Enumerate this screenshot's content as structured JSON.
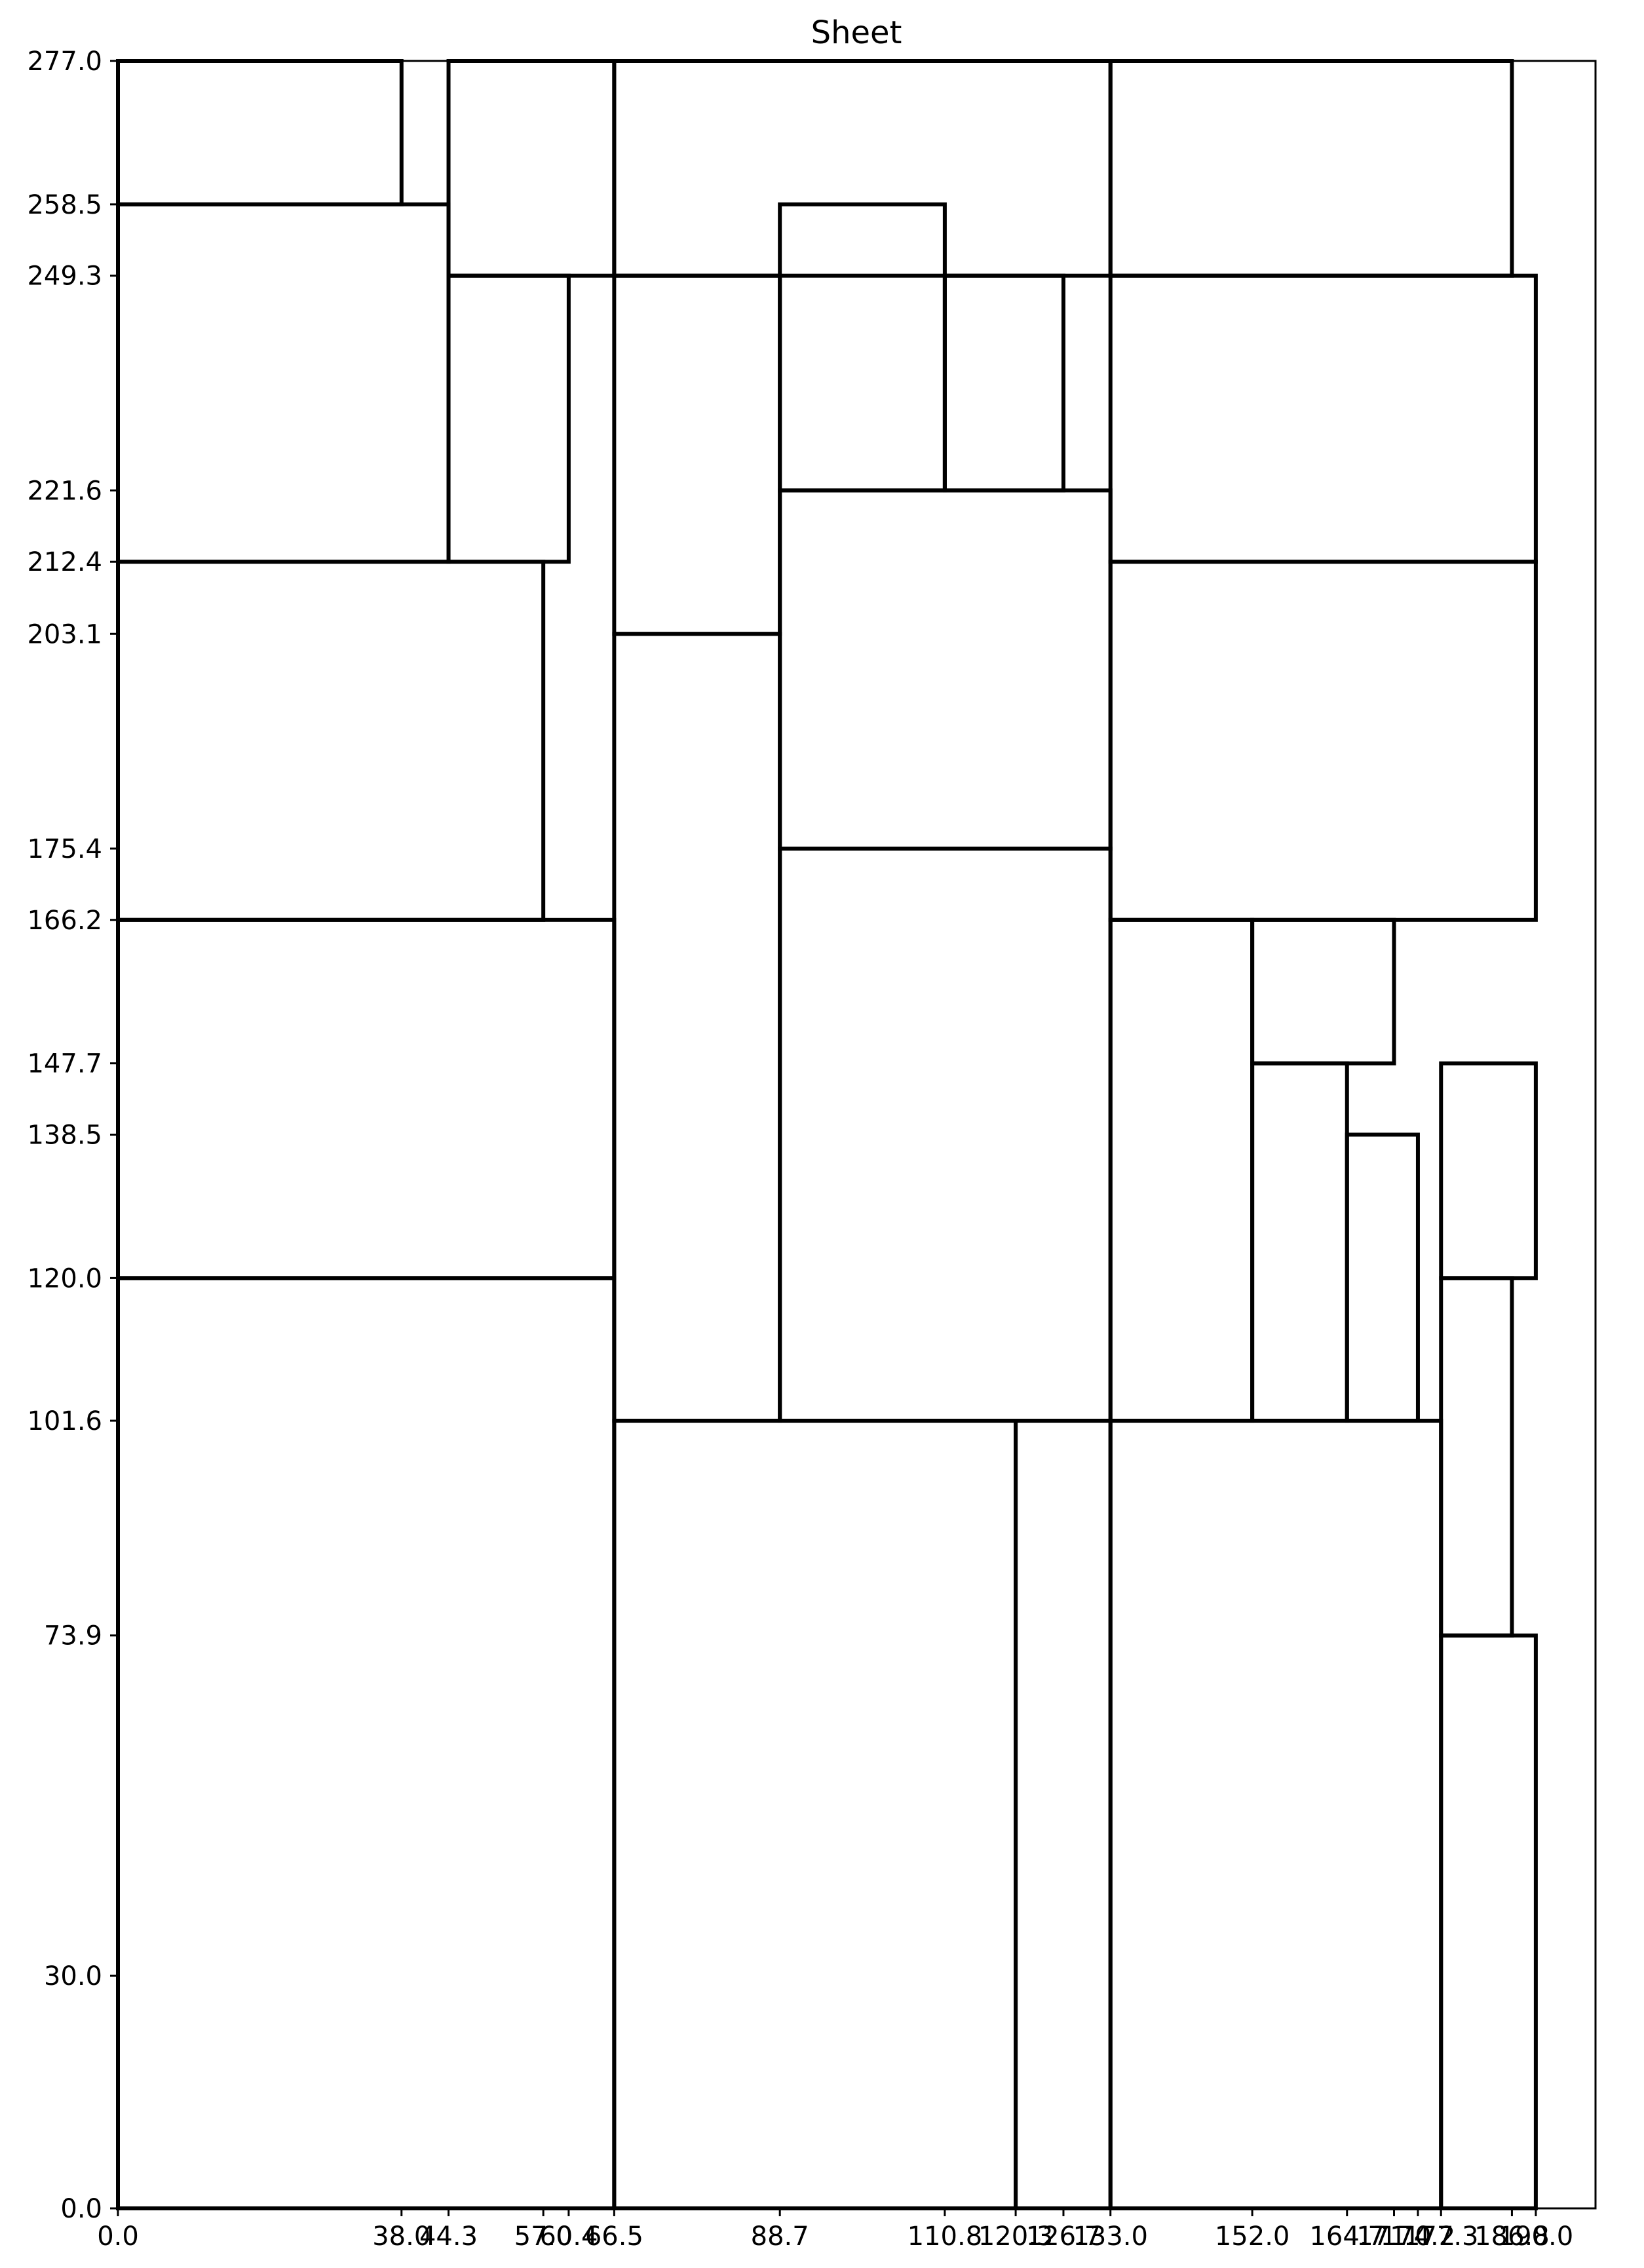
{
  "chart_data": {
    "type": "diagram",
    "title": "Sheet",
    "xlim": [
      0,
      198
    ],
    "ylim": [
      0,
      277
    ],
    "x_ticks": [
      {
        "value": 0,
        "label": "0.0"
      },
      {
        "value": 38.0,
        "label": "38.0"
      },
      {
        "value": 44.3,
        "label": "44.3"
      },
      {
        "value": 57.0,
        "label": "57.0"
      },
      {
        "value": 60.4,
        "label": "60.4"
      },
      {
        "value": 66.5,
        "label": "66.5"
      },
      {
        "value": 88.7,
        "label": "88.7"
      },
      {
        "value": 110.8,
        "label": "110.8"
      },
      {
        "value": 120.3,
        "label": "120.3"
      },
      {
        "value": 126.7,
        "label": "126.7"
      },
      {
        "value": 133.0,
        "label": "133.0"
      },
      {
        "value": 152.0,
        "label": "152.0"
      },
      {
        "value": 164.7,
        "label": "164.7"
      },
      {
        "value": 171.0,
        "label": "171.0"
      },
      {
        "value": 174.2,
        "label": "174.2"
      },
      {
        "value": 177.3,
        "label": "177.3"
      },
      {
        "value": 186.8,
        "label": "186.8"
      },
      {
        "value": 190.0,
        "label": "190.0"
      }
    ],
    "y_ticks": [
      {
        "value": 0,
        "label": "0.0"
      },
      {
        "value": 30.0,
        "label": "30.0"
      },
      {
        "value": 73.9,
        "label": "73.9"
      },
      {
        "value": 101.6,
        "label": "101.6"
      },
      {
        "value": 120.0,
        "label": "120.0"
      },
      {
        "value": 138.5,
        "label": "138.5"
      },
      {
        "value": 147.7,
        "label": "147.7"
      },
      {
        "value": 166.2,
        "label": "166.2"
      },
      {
        "value": 175.4,
        "label": "175.4"
      },
      {
        "value": 203.1,
        "label": "203.1"
      },
      {
        "value": 212.4,
        "label": "212.4"
      },
      {
        "value": 221.6,
        "label": "221.6"
      },
      {
        "value": 249.3,
        "label": "249.3"
      },
      {
        "value": 258.5,
        "label": "258.5"
      },
      {
        "value": 277.0,
        "label": "277.0"
      }
    ],
    "panels": [
      {
        "x0": 0,
        "y0": 0,
        "x1": 66.5,
        "y1": 120.0
      },
      {
        "x0": 0,
        "y0": 120.0,
        "x1": 66.5,
        "y1": 166.2
      },
      {
        "x0": 0,
        "y0": 166.2,
        "x1": 57.0,
        "y1": 212.4
      },
      {
        "x0": 0,
        "y0": 212.4,
        "x1": 44.3,
        "y1": 258.5
      },
      {
        "x0": 0,
        "y0": 258.5,
        "x1": 38.0,
        "y1": 277.0
      },
      {
        "x0": 44.3,
        "y0": 249.3,
        "x1": 66.5,
        "y1": 277.0
      },
      {
        "x0": 44.3,
        "y0": 212.4,
        "x1": 60.4,
        "y1": 249.3
      },
      {
        "x0": 66.5,
        "y0": 249.3,
        "x1": 133.0,
        "y1": 277.0
      },
      {
        "x0": 66.5,
        "y0": 203.1,
        "x1": 88.7,
        "y1": 249.3
      },
      {
        "x0": 66.5,
        "y0": 101.6,
        "x1": 88.7,
        "y1": 203.1
      },
      {
        "x0": 88.7,
        "y0": 221.6,
        "x1": 110.8,
        "y1": 258.5
      },
      {
        "x0": 110.8,
        "y0": 221.6,
        "x1": 126.7,
        "y1": 249.3
      },
      {
        "x0": 88.7,
        "y0": 175.4,
        "x1": 133.0,
        "y1": 221.6
      },
      {
        "x0": 88.7,
        "y0": 101.6,
        "x1": 133.0,
        "y1": 175.4
      },
      {
        "x0": 66.5,
        "y0": 0,
        "x1": 120.3,
        "y1": 101.6
      },
      {
        "x0": 120.3,
        "y0": 0,
        "x1": 133.0,
        "y1": 101.6
      },
      {
        "x0": 133.0,
        "y0": 249.3,
        "x1": 186.8,
        "y1": 277.0
      },
      {
        "x0": 133.0,
        "y0": 212.4,
        "x1": 190.0,
        "y1": 249.3
      },
      {
        "x0": 133.0,
        "y0": 166.2,
        "x1": 190.0,
        "y1": 212.4
      },
      {
        "x0": 133.0,
        "y0": 101.6,
        "x1": 152.0,
        "y1": 166.2
      },
      {
        "x0": 152.0,
        "y0": 147.7,
        "x1": 171.0,
        "y1": 166.2
      },
      {
        "x0": 152.0,
        "y0": 101.6,
        "x1": 164.7,
        "y1": 147.7
      },
      {
        "x0": 164.7,
        "y0": 101.6,
        "x1": 174.2,
        "y1": 138.5
      },
      {
        "x0": 177.3,
        "y0": 120.0,
        "x1": 190.0,
        "y1": 147.7
      },
      {
        "x0": 177.3,
        "y0": 73.9,
        "x1": 186.8,
        "y1": 120.0
      },
      {
        "x0": 133.0,
        "y0": 0,
        "x1": 177.3,
        "y1": 101.6
      },
      {
        "x0": 177.3,
        "y0": 0,
        "x1": 190.0,
        "y1": 73.9
      }
    ]
  }
}
